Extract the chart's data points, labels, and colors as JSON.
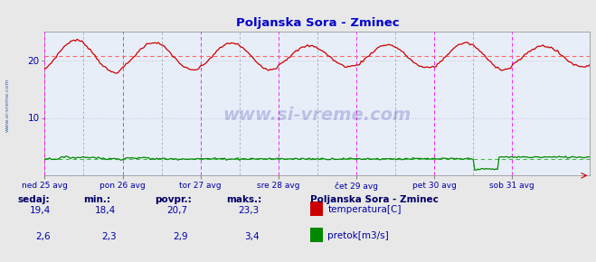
{
  "title": "Poljanska Sora - Zminec",
  "title_color": "#0000cc",
  "bg_color": "#e8e8e8",
  "plot_bg_color": "#e8eef8",
  "grid_color": "#c0c8d8",
  "x_tick_labels": [
    "ned 25 avg",
    "pon 26 avg",
    "tor 27 avg",
    "sre 28 avg",
    "čet 29 avg",
    "pet 30 avg",
    "sob 31 avg"
  ],
  "x_tick_positions": [
    0,
    48,
    96,
    144,
    192,
    240,
    288
  ],
  "x_vlines_magenta": [
    0,
    48,
    96,
    144,
    192,
    240,
    288
  ],
  "x_vlines_dark": [
    24,
    72,
    120,
    168,
    216,
    264
  ],
  "ylim": [
    0,
    25
  ],
  "yticks": [
    10,
    20
  ],
  "y_label_color": "#0000aa",
  "x_label_color": "#0000aa",
  "temp_color": "#cc0000",
  "flow_color": "#008800",
  "avg_temp": 20.7,
  "avg_flow": 2.9,
  "avg_line_color_temp": "#ff6666",
  "avg_line_color_flow": "#44bb44",
  "watermark": "www.si-vreme.com",
  "watermark_color": "#2222aa",
  "watermark_alpha": 0.22,
  "sidebar_text": "www.si-vreme.com",
  "sidebar_color": "#2255aa",
  "n_points": 337,
  "temp_base": 20.7,
  "temp_amplitude": 2.2,
  "temp_period": 48,
  "flow_base": 2.9,
  "footer_labels": [
    "sedaj:",
    "min.:",
    "povpr.:",
    "maks.:"
  ],
  "footer_temp": [
    "19,4",
    "18,4",
    "20,7",
    "23,3"
  ],
  "footer_flow": [
    "2,6",
    "2,3",
    "2,9",
    "3,4"
  ],
  "legend_title": "Poljanska Sora - Zminec",
  "legend_items": [
    "temperatura[C]",
    "pretok[m3/s]"
  ],
  "legend_colors": [
    "#cc0000",
    "#008800"
  ],
  "footer_color": "#0000aa",
  "footer_header_color": "#000066"
}
